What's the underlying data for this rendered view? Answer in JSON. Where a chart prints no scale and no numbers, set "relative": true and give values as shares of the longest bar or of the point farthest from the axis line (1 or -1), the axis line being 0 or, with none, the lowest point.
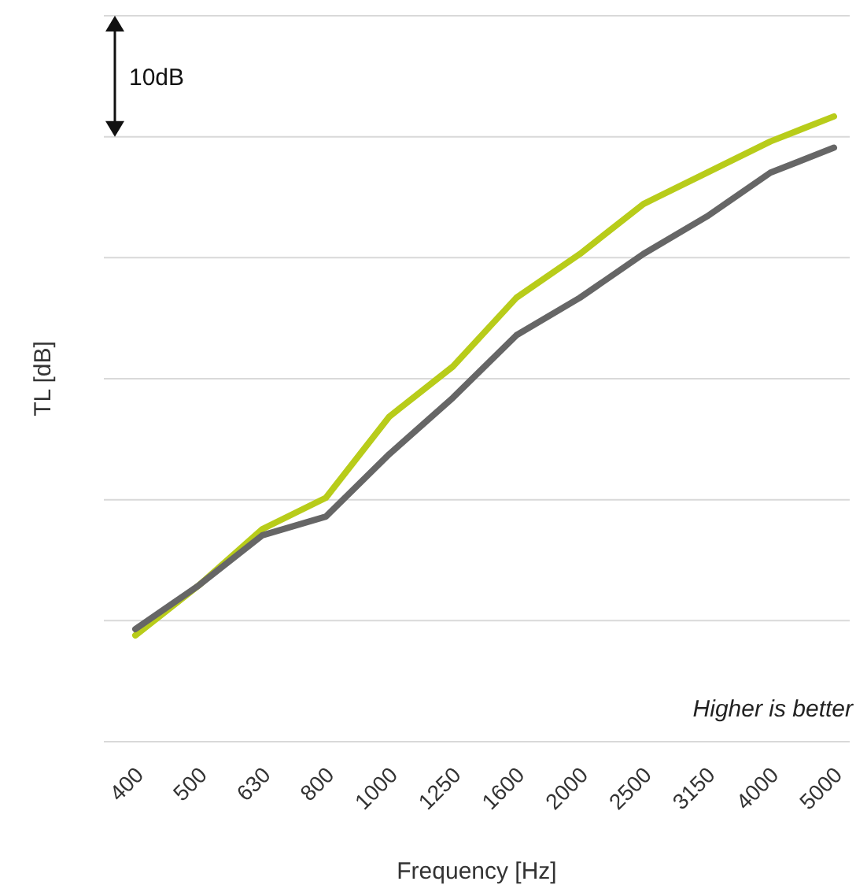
{
  "chart_data": {
    "type": "line",
    "relative": true,
    "xlabel": "Frequency [Hz]",
    "ylabel": "TL [dB]",
    "grid": "y",
    "annotations": [
      "10dB",
      "Higher is better"
    ],
    "categories": [
      "400",
      "500",
      "630",
      "800",
      "1000",
      "1250",
      "1600",
      "2000",
      "2500",
      "3150",
      "4000",
      "5000"
    ],
    "series": [
      {
        "color": "#b8cc1a",
        "values": [
          0.17,
          0.25,
          0.34,
          0.39,
          0.52,
          0.6,
          0.71,
          0.78,
          0.86,
          0.91,
          0.96,
          1
        ]
      },
      {
        "color": "#666666",
        "values": [
          0.18,
          0.25,
          0.33,
          0.36,
          0.46,
          0.55,
          0.65,
          0.71,
          0.78,
          0.84,
          0.91,
          0.95
        ]
      }
    ]
  }
}
